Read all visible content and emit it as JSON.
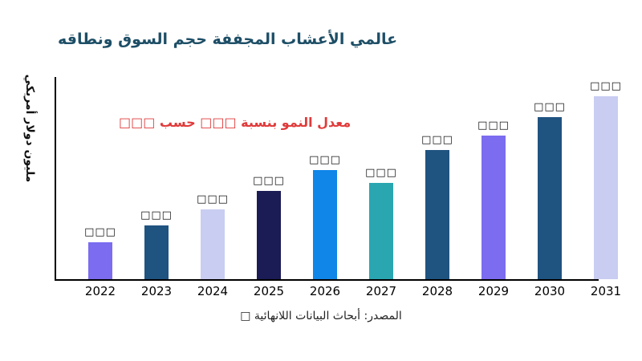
{
  "page": {
    "title": "عالمي الأعشاب المجففة حجم السوق ونطاقه",
    "annotation": "معدل النمو بنسبة □□□ حسب □□□",
    "source": "المصدر: أبحاث البيانات اللانهائية □"
  },
  "colors": {
    "title_text": "#1d4e66",
    "annotation_text": "#e03a3a",
    "axis": "#000000",
    "background": "#ffffff"
  },
  "chart_data": {
    "type": "bar",
    "title": "عالمي الأعشاب المجففة حجم السوق ونطاقه",
    "xlabel": "",
    "ylabel": "مليون دولار أمريكي",
    "categories": [
      "2022",
      "2023",
      "2024",
      "2025",
      "2026",
      "2027",
      "2028",
      "2029",
      "2030",
      "2031"
    ],
    "values_relative_pct_of_max": [
      20,
      29,
      38,
      48,
      59,
      52,
      70,
      78,
      88,
      99
    ],
    "value_labels": [
      "□□□",
      "□□□",
      "□□□",
      "□□□",
      "□□□",
      "□□□",
      "□□□",
      "□□□",
      "□□□",
      "□□□"
    ],
    "bar_colors": [
      "#7b6cf0",
      "#1f5380",
      "#c9cdf2",
      "#1b1b55",
      "#0f86e8",
      "#2aa6b0",
      "#1f5380",
      "#7b6cf0",
      "#1f5380",
      "#c9cdf2"
    ],
    "grid": false,
    "legend_position": "none",
    "annotation": "معدل النمو بنسبة □□□ حسب □□□",
    "y_axis_ticks_visible": false
  }
}
